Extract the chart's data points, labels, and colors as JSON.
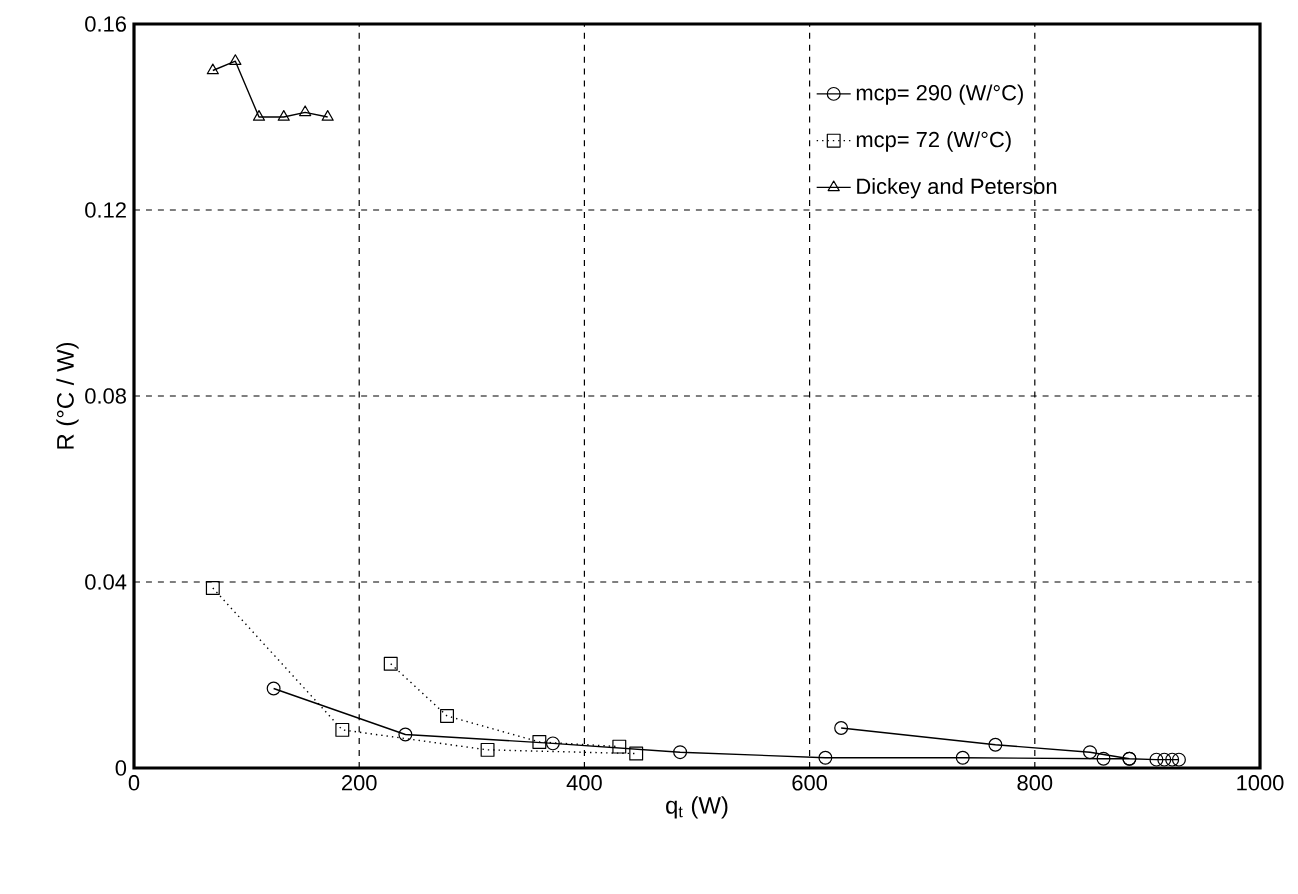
{
  "chart_data": {
    "type": "line",
    "xlabel": "q$_{t}$ (W)",
    "ylabel": "R (°C / W)",
    "xlim": [
      0,
      1000
    ],
    "ylim": [
      0,
      0.16
    ],
    "xticks": [
      0,
      200,
      400,
      600,
      800,
      1000
    ],
    "yticks": [
      0,
      0.04,
      0.08,
      0.12,
      0.16
    ],
    "grid": true,
    "legend": "top right",
    "series": [
      {
        "name": "mcp= 290 (W/°C)",
        "color": "#000000",
        "marker": "circle",
        "line_style": "solid",
        "x": [
          124,
          241,
          372,
          485,
          614,
          736,
          861,
          884,
          908,
          915,
          922,
          928,
          null,
          628,
          765,
          849,
          884
        ],
        "values": [
          0.0171,
          0.0072,
          0.0053,
          0.0034,
          0.0022,
          0.0022,
          0.002,
          0.002,
          0.0018,
          0.0018,
          0.0018,
          0.0018,
          null,
          0.0086,
          0.005,
          0.0034,
          0.002
        ]
      },
      {
        "name": "mcp= 72 (W/°C)",
        "color": "#000000",
        "marker": "square",
        "line_style": "dotted",
        "x": [
          70,
          185,
          314,
          446,
          null,
          228,
          278,
          360,
          431
        ],
        "values": [
          0.0387,
          0.0082,
          0.0039,
          0.0031,
          null,
          0.0224,
          0.0112,
          0.0056,
          0.0046
        ]
      },
      {
        "name": "Dickey and Peterson",
        "color": "#000000",
        "marker": "triangle",
        "line_style": "solid",
        "x": [
          70,
          90,
          111,
          133,
          152,
          172
        ],
        "values": [
          0.15,
          0.152,
          0.14,
          0.14,
          0.141,
          0.14
        ]
      }
    ]
  }
}
